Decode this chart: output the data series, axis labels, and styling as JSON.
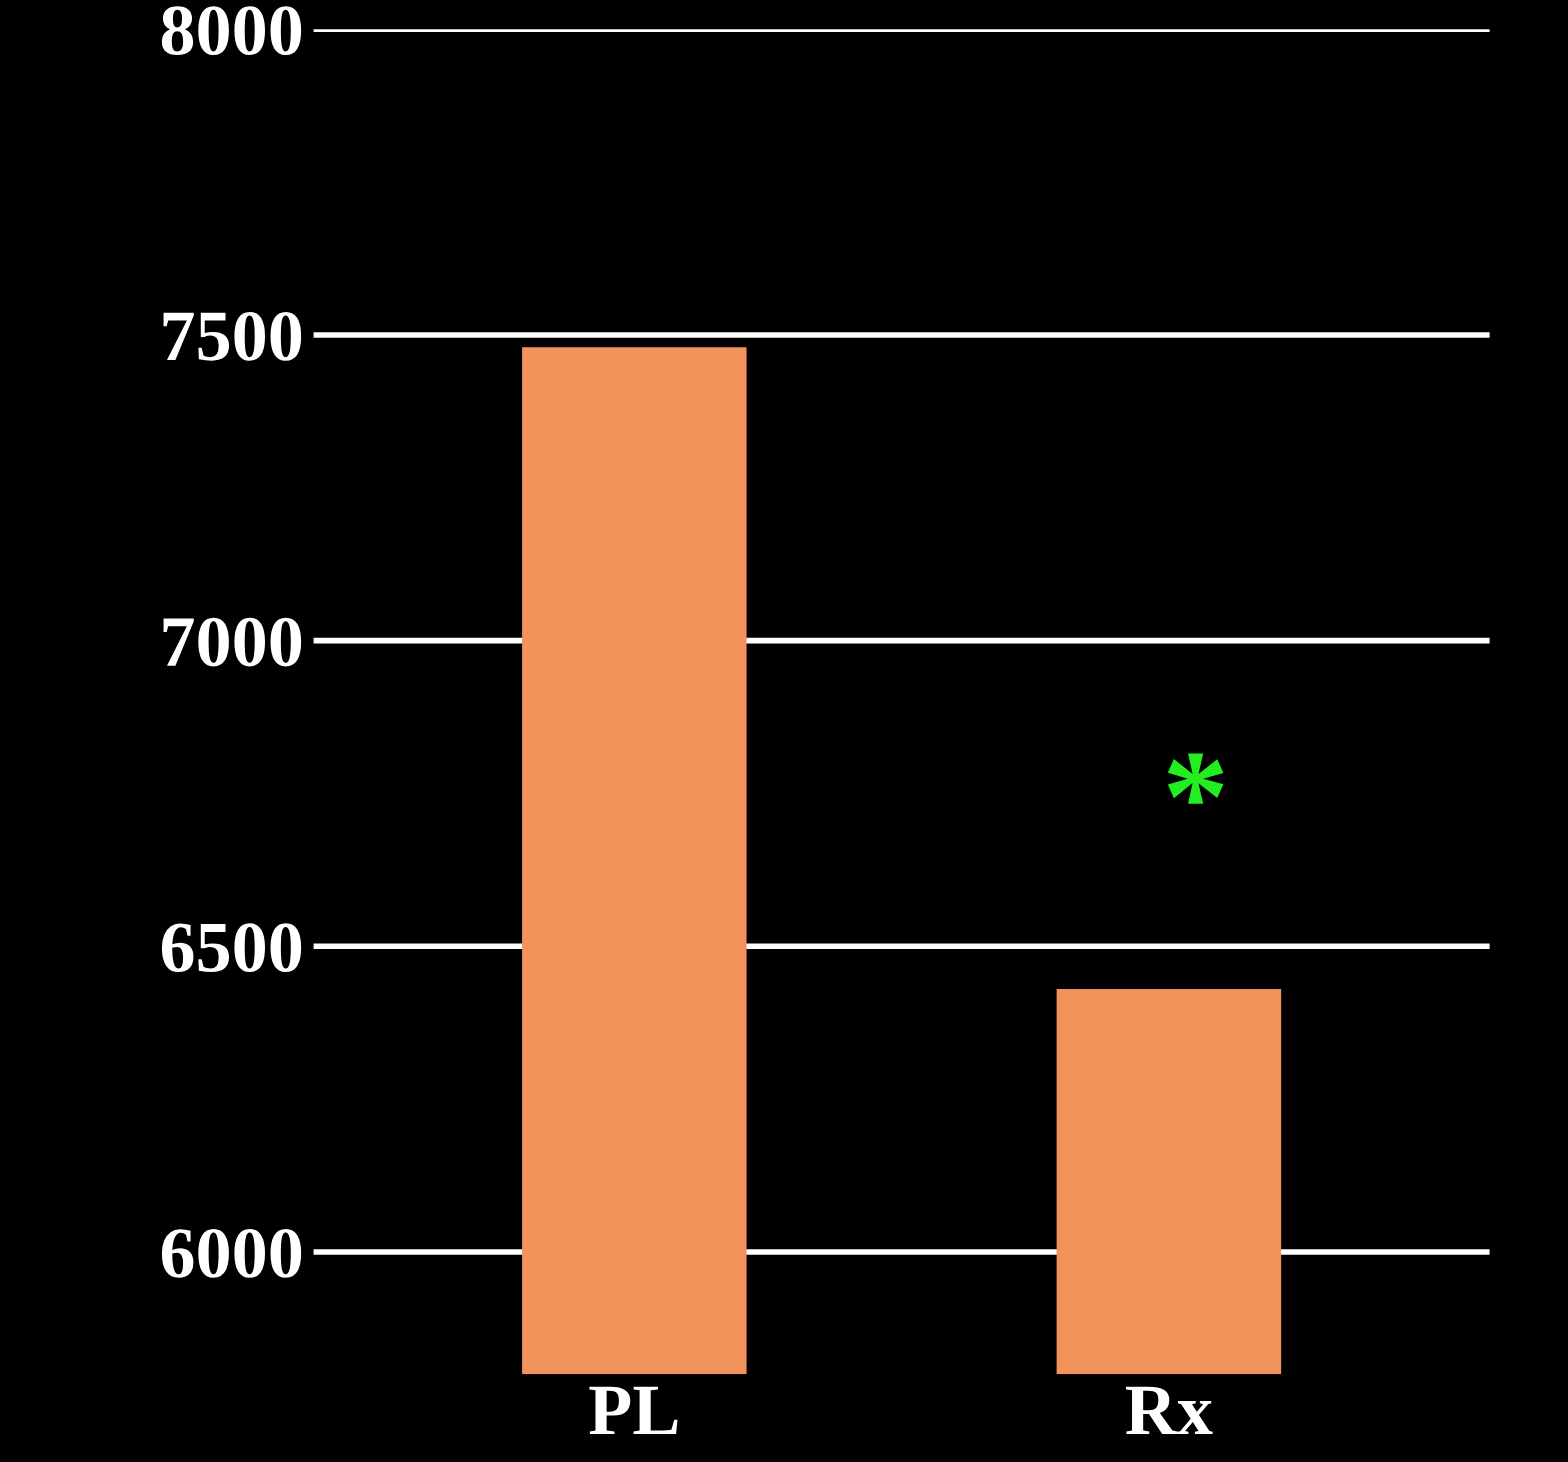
{
  "chart_data": {
    "type": "bar",
    "categories": [
      "PL",
      "Rx"
    ],
    "values": [
      7480,
      6430
    ],
    "color": "#f2935c",
    "ylim": [
      5800,
      8000
    ],
    "yticks": [
      6000,
      6500,
      7000,
      7500,
      8000
    ],
    "grid": "y",
    "annotations": [
      "*"
    ]
  }
}
